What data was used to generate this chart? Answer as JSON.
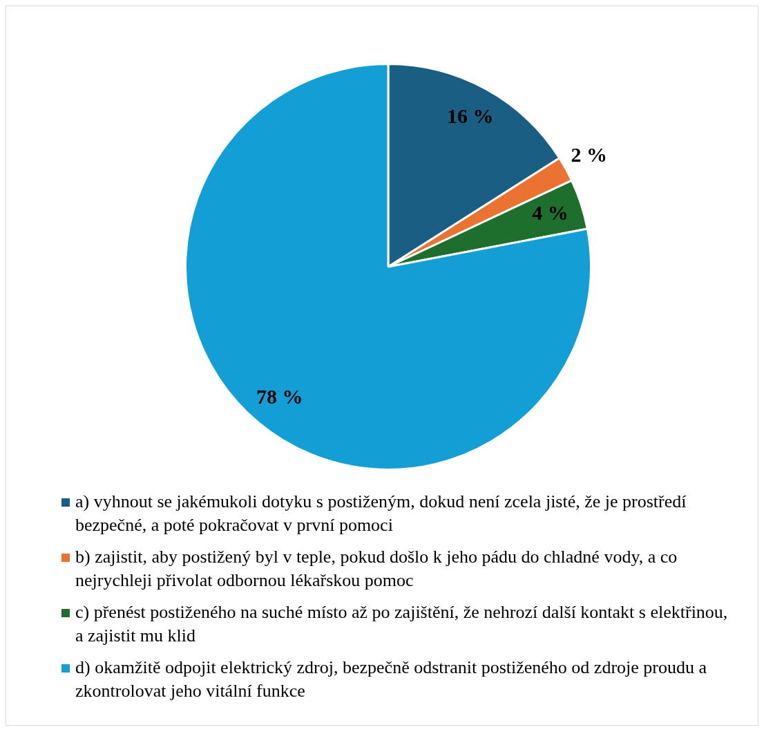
{
  "chart_data": {
    "type": "pie",
    "categories": [
      "a) vyhnout se jakémukoli dotyku s postiženým, dokud není zcela jisté, že je prostředí bezpečné, a poté pokračovat v první pomoci",
      "b) zajistit, aby postižený byl v teple, pokud došlo k jeho pádu do chladné vody, a co nejrychleji přivolat odbornou lékařskou pomoc",
      "c) přenést postiženého na suché místo až po zajištění, že nehrozí další kontakt s elektřinou, a zajistit mu klid",
      "d) okamžitě odpojit elektrický zdroj, bezpečně odstranit postiženého od zdroje proudu a zkontrolovat jeho vitální funkce"
    ],
    "values": [
      16,
      2,
      4,
      78
    ],
    "colors": [
      "#1a5e84",
      "#ea7331",
      "#1e6e2e",
      "#139fd6"
    ],
    "value_labels": [
      "16 %",
      "2 %",
      "4 %",
      "78 %"
    ],
    "legend": "bottom"
  }
}
